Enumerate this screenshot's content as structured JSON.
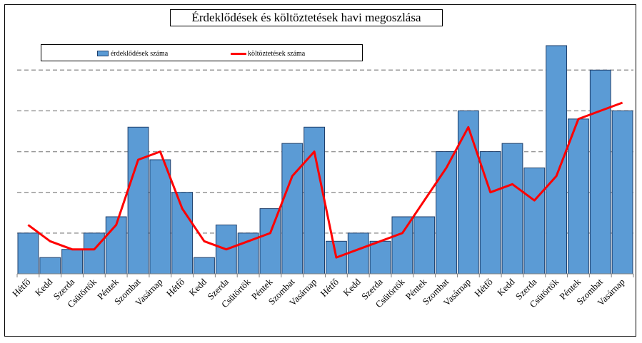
{
  "chart_data": {
    "type": "bar+line",
    "title": "Érdeklődések és költöztetések havi megoszlása",
    "categories": [
      "Hétfő",
      "Kedd",
      "Szerda",
      "Csütörtök",
      "Péntek",
      "Szombat",
      "Vasárnap",
      "Hétfő",
      "Kedd",
      "Szerda",
      "Csütörtök",
      "Péntek",
      "Szombat",
      "Vasárnap",
      "Hétfő",
      "Kedd",
      "Szerda",
      "Csütörtök",
      "Péntek",
      "Szombat",
      "Vasárnap",
      "Hétfő",
      "Kedd",
      "Szerda",
      "Csütörtök",
      "Péntek",
      "Szombat",
      "Vasárnap"
    ],
    "series": [
      {
        "name": "érdeklődések száma",
        "type": "bar",
        "color": "#5b9bd5",
        "values": [
          5,
          2,
          3,
          5,
          7,
          18,
          14,
          10,
          2,
          6,
          5,
          8,
          16,
          18,
          4,
          5,
          4,
          7,
          7,
          15,
          20,
          15,
          16,
          13,
          28,
          19,
          25,
          20
        ]
      },
      {
        "name": "költöztetések száma",
        "type": "line",
        "color": "#ff0000",
        "values": [
          6,
          4,
          3,
          3,
          6,
          14,
          15,
          8,
          4,
          3,
          4,
          5,
          12,
          15,
          2,
          3,
          4,
          5,
          9,
          13,
          18,
          10,
          11,
          9,
          12,
          19,
          20,
          21
        ]
      }
    ],
    "ylim": [
      0,
      28
    ],
    "gridlines": [
      5,
      10,
      15,
      20,
      25
    ],
    "grid": true,
    "xlabel": "",
    "ylabel": "",
    "legend_position": "top-left"
  }
}
